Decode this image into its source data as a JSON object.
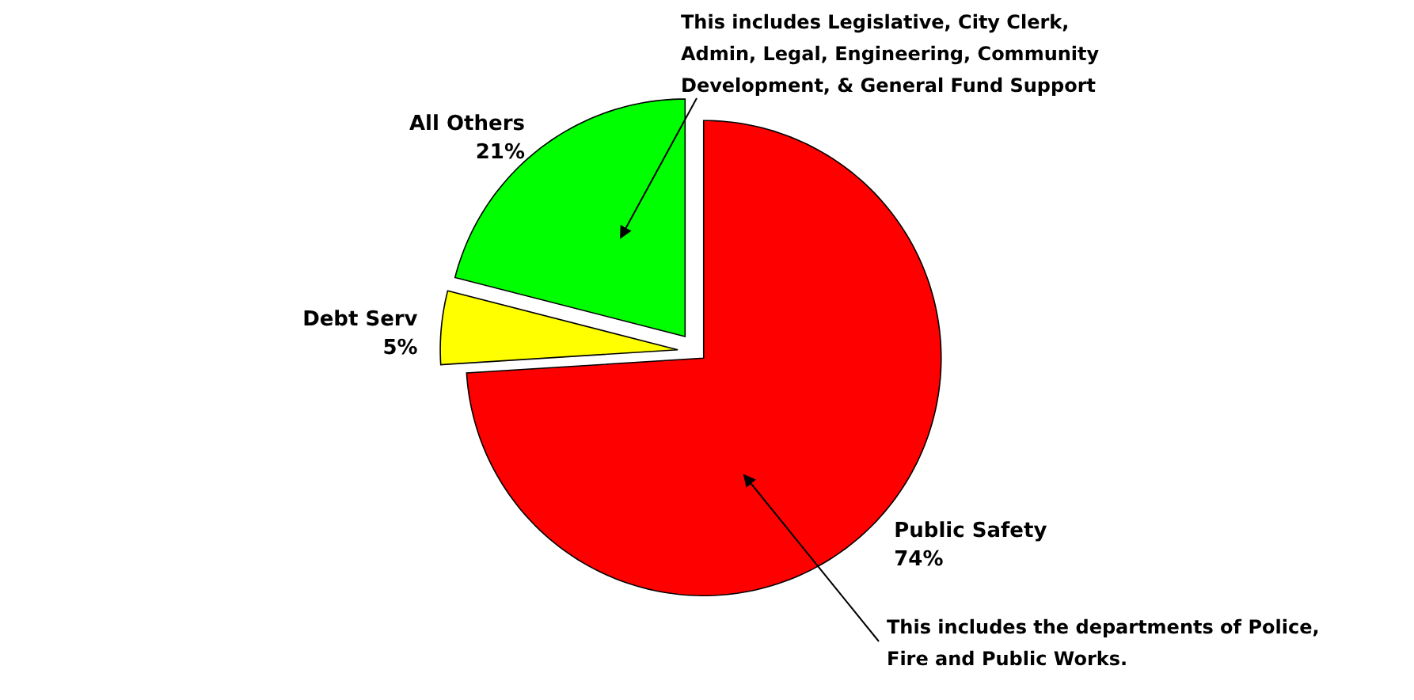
{
  "chart_data": {
    "type": "pie",
    "categories": [
      "Public Safety",
      "Debt Serv",
      "All Others"
    ],
    "values": [
      74,
      5,
      21
    ],
    "colors": [
      "#ff0000",
      "#ffff00",
      "#00ff00"
    ],
    "value_labels": [
      "74%",
      "5%",
      "21%"
    ],
    "annotations": [
      "This includes Legislative, City Clerk, Admin, Legal, Engineering, Community Development, & General Fund Support",
      "This includes the departments of Police, Fire and Public Works."
    ]
  }
}
